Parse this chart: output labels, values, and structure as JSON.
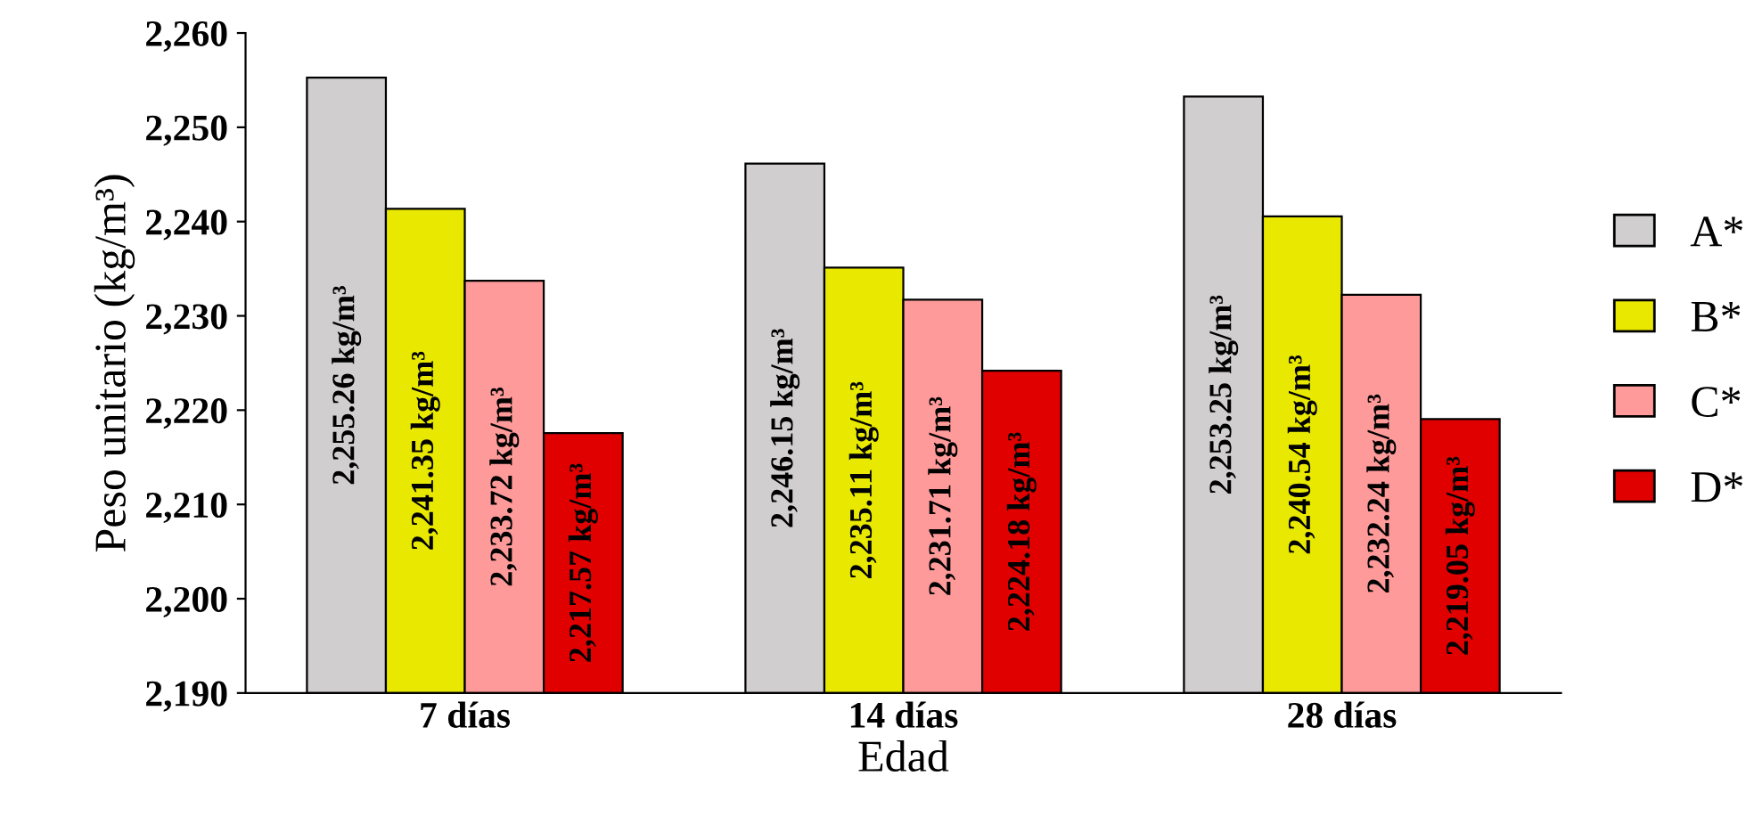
{
  "chart_data": {
    "type": "bar",
    "xlabel": "Edad",
    "ylabel": "Peso unitario (kg/m³)",
    "categories": [
      "7 días",
      "14 días",
      "28 días"
    ],
    "series": [
      {
        "name": "A*",
        "color": "#d0cece",
        "values": [
          2255.26,
          2246.15,
          2253.25
        ],
        "value_labels": [
          "2,255.26 kg/m³",
          "2,246.15 kg/m³",
          "2,253.25 kg/m³"
        ]
      },
      {
        "name": "B*",
        "color": "#e8e800",
        "values": [
          2241.35,
          2235.11,
          2240.54
        ],
        "value_labels": [
          "2,241.35 kg/m³",
          "2,235.11 kg/m³",
          "2,240.54 kg/m³"
        ]
      },
      {
        "name": "C*",
        "color": "#ff9a9a",
        "values": [
          2233.72,
          2231.71,
          2232.24
        ],
        "value_labels": [
          "2,233.72 kg/m³",
          "2,231.71 kg/m³",
          "2,232.24 kg/m³"
        ]
      },
      {
        "name": "D*",
        "color": "#e00000",
        "values": [
          2217.57,
          2224.18,
          2219.05
        ],
        "value_labels": [
          "2,217.57 kg/m³",
          "2,224.18 kg/m³",
          "2,219.05 kg/m³"
        ]
      }
    ],
    "ylim": [
      2190,
      2260
    ],
    "yticks": [
      {
        "value": 2190,
        "label": "2,190"
      },
      {
        "value": 2200,
        "label": "2,200"
      },
      {
        "value": 2210,
        "label": "2,210"
      },
      {
        "value": 2220,
        "label": "2,220"
      },
      {
        "value": 2230,
        "label": "2,230"
      },
      {
        "value": 2240,
        "label": "2,240"
      },
      {
        "value": 2250,
        "label": "2,250"
      },
      {
        "value": 2260,
        "label": "2,260"
      }
    ],
    "legend": "right",
    "grid": false
  }
}
